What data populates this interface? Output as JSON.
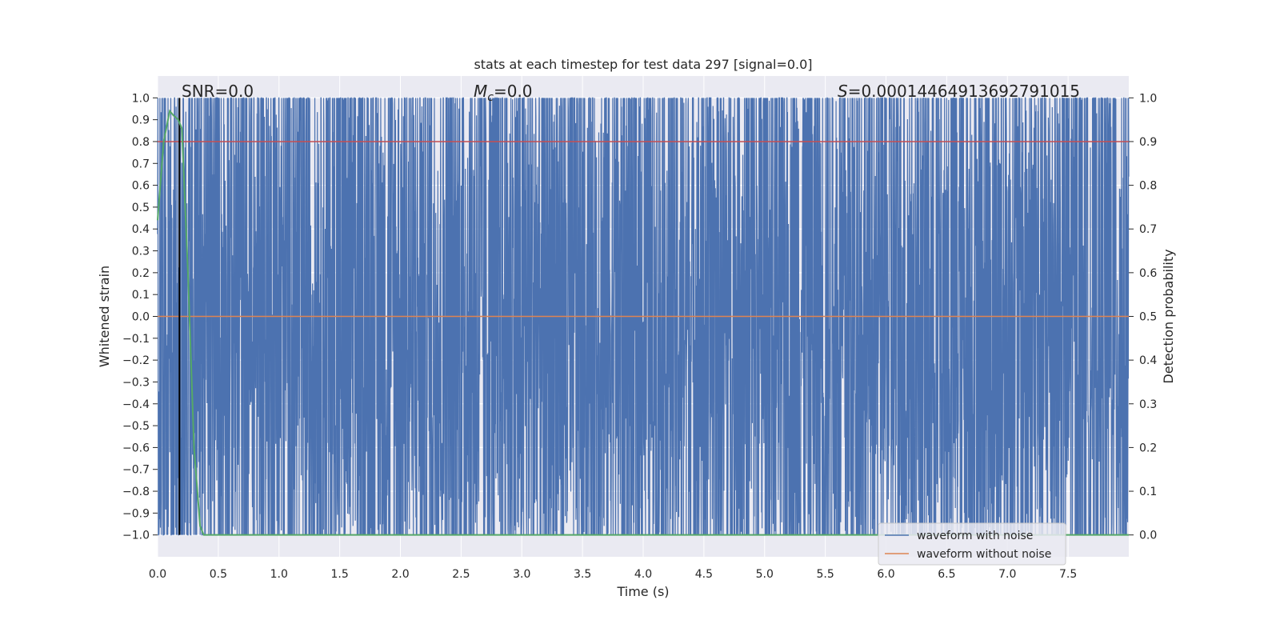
{
  "chart_data": {
    "type": "line",
    "title": "stats at each timestep for test data 297 [signal=0.0]",
    "xlabel": "Time (s)",
    "ylabel": "Whitened strain",
    "y2label": "Detection probability",
    "xlim": [
      0.0,
      8.0
    ],
    "ylim": [
      -1.1,
      1.1
    ],
    "y2lim": [
      -0.05,
      1.05
    ],
    "xticks": [
      "0.0",
      "0.5",
      "1.0",
      "1.5",
      "2.0",
      "2.5",
      "3.0",
      "3.5",
      "4.0",
      "4.5",
      "5.0",
      "5.5",
      "6.0",
      "6.5",
      "7.0",
      "7.5"
    ],
    "yticks": [
      "1.0",
      "0.9",
      "0.8",
      "0.7",
      "0.6",
      "0.5",
      "0.4",
      "0.3",
      "0.2",
      "0.1",
      "0.0",
      "−0.1",
      "−0.2",
      "−0.3",
      "−0.4",
      "−0.5",
      "−0.6",
      "−0.7",
      "−0.8",
      "−0.9",
      "−1.0"
    ],
    "y2ticks": [
      "1.0",
      "0.9",
      "0.8",
      "0.7",
      "0.6",
      "0.5",
      "0.4",
      "0.3",
      "0.2",
      "0.1",
      "0.0"
    ],
    "annotations": {
      "snr": "SNR=0.0",
      "mc_symbol": "M",
      "mc_sub": "c",
      "mc_value": "=0.0",
      "s_symbol": "S",
      "s_value": "=0.00014464913692791015"
    },
    "legend_placement": "lower-right",
    "series": [
      {
        "name": "waveform with noise",
        "color": "#4c72b0",
        "description_range": [
          -1.0,
          1.0
        ]
      },
      {
        "name": "waveform without noise",
        "color": "#dd8452",
        "values_constant": 0.0
      },
      {
        "color": "#55a868",
        "axis": "y2",
        "x": [
          0.0,
          0.05,
          0.1,
          0.13,
          0.17,
          0.2,
          0.25,
          0.3,
          0.35,
          0.38,
          0.5,
          1.0,
          2.0,
          3.0,
          4.0,
          5.0,
          6.0,
          7.0,
          8.0
        ],
        "values": [
          0.72,
          0.9,
          0.97,
          0.96,
          0.95,
          0.93,
          0.6,
          0.2,
          0.02,
          0.0,
          0.0,
          0.0,
          0.0,
          0.0,
          0.0,
          0.0,
          0.0,
          0.0,
          0.0
        ]
      },
      {
        "color": "#c44e52",
        "axis": "y2",
        "values_constant": 0.9
      }
    ],
    "vertical_line": {
      "x": 0.18,
      "color": "#000000"
    },
    "grid": true
  }
}
